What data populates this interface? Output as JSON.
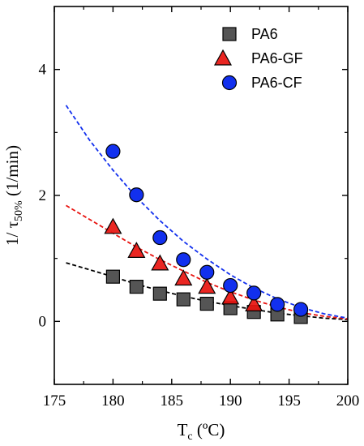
{
  "chart_data": {
    "type": "scatter",
    "title": "",
    "xlabel": "T",
    "xlabel_sub": "c",
    "xlabel_unit": " (ºC)",
    "ylabel": "1/ τ",
    "ylabel_sub": "50%",
    "ylabel_unit": " (1/min)",
    "xlim": [
      175,
      200
    ],
    "ylim": [
      -1.0,
      5.0
    ],
    "xticks": [
      "175",
      "180",
      "185",
      "190",
      "195",
      "200"
    ],
    "yticks": [
      "0",
      "2",
      "4"
    ],
    "legend_position": "top-right",
    "grid": false,
    "series": [
      {
        "name": "PA6",
        "marker": "square",
        "color": "#555555",
        "x": [
          180,
          182,
          184,
          186,
          188,
          190,
          192,
          194,
          196
        ],
        "y": [
          0.71,
          0.55,
          0.44,
          0.35,
          0.28,
          0.21,
          0.15,
          0.11,
          0.07
        ],
        "fit": {
          "color": "#000000",
          "x": [
            176,
            178,
            180,
            182,
            184,
            186,
            188,
            190,
            192,
            194,
            196,
            198,
            200
          ],
          "y": [
            0.93,
            0.82,
            0.71,
            0.59,
            0.49,
            0.4,
            0.32,
            0.25,
            0.19,
            0.13,
            0.09,
            0.05,
            0.03
          ]
        }
      },
      {
        "name": "PA6-GF",
        "marker": "triangle",
        "color": "#e8130f",
        "x": [
          180,
          182,
          184,
          186,
          188,
          190,
          192
        ],
        "y": [
          1.5,
          1.12,
          0.92,
          0.68,
          0.55,
          0.38,
          0.27
        ],
        "fit": {
          "color": "#e8130f",
          "x": [
            176,
            178,
            180,
            182,
            184,
            186,
            188,
            190,
            192,
            194,
            196,
            198,
            200
          ],
          "y": [
            1.84,
            1.62,
            1.4,
            1.18,
            0.98,
            0.8,
            0.62,
            0.47,
            0.34,
            0.23,
            0.14,
            0.08,
            0.04
          ]
        }
      },
      {
        "name": "PA6-CF",
        "marker": "circle",
        "color": "#1230ee",
        "x": [
          180,
          182,
          184,
          186,
          188,
          190,
          192,
          194,
          196
        ],
        "y": [
          2.7,
          2.01,
          1.33,
          0.98,
          0.78,
          0.57,
          0.45,
          0.27,
          0.19
        ],
        "fit": {
          "color": "#1230ee",
          "x": [
            176,
            178,
            180,
            182,
            184,
            186,
            188,
            190,
            192,
            194,
            196,
            198,
            200
          ],
          "y": [
            3.43,
            2.88,
            2.4,
            1.97,
            1.6,
            1.27,
            0.99,
            0.74,
            0.53,
            0.36,
            0.22,
            0.12,
            0.05
          ]
        }
      }
    ]
  }
}
